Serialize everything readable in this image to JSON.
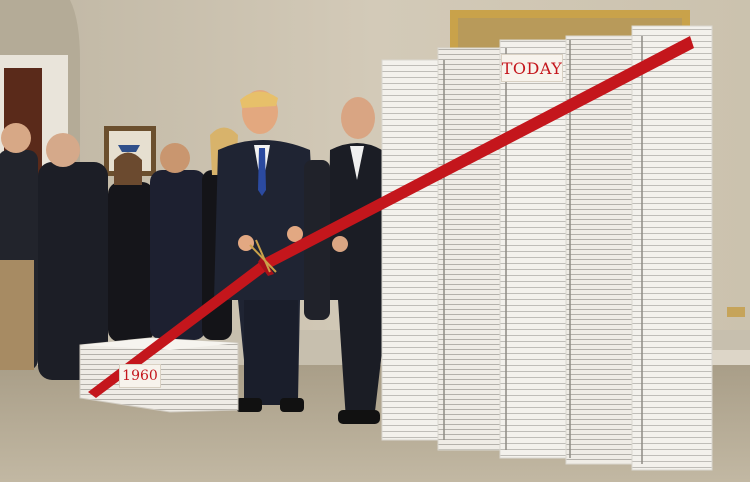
{
  "signs": {
    "today": "TODAY",
    "year_1960": "1960"
  },
  "colors": {
    "ribbon": "#c4161c",
    "wall": "#cfc6b3",
    "carpet": "#b9ae99",
    "paper": "#f4f1ea",
    "frame_gold": "#c9a24a",
    "suit": "#1e2230"
  }
}
